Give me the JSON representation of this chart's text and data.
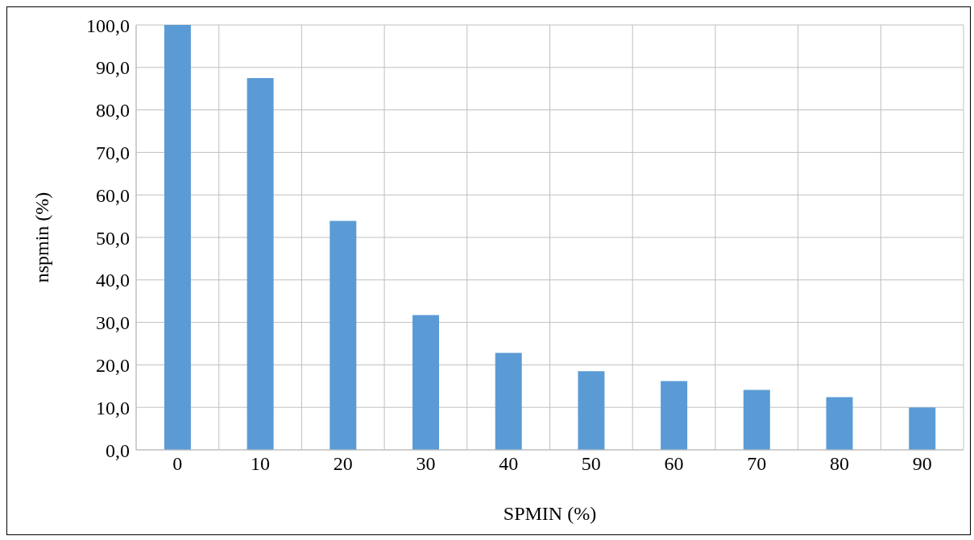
{
  "chart_data": {
    "type": "bar",
    "xlabel": "SPMIN (%)",
    "ylabel": "nspmin (%)",
    "categories": [
      "0",
      "10",
      "20",
      "30",
      "40",
      "50",
      "60",
      "70",
      "80",
      "90"
    ],
    "values": [
      100,
      87.5,
      53.9,
      31.7,
      22.8,
      18.5,
      16.2,
      14.1,
      12.4,
      10.0
    ],
    "color": "#5b9bd5",
    "ylim": [
      0,
      100
    ],
    "yticks": [
      {
        "value": 0,
        "label": "0,0"
      },
      {
        "value": 10,
        "label": "10,0"
      },
      {
        "value": 20,
        "label": "20,0"
      },
      {
        "value": 30,
        "label": "30,0"
      },
      {
        "value": 40,
        "label": "40,0"
      },
      {
        "value": 50,
        "label": "50,0"
      },
      {
        "value": 60,
        "label": "60,0"
      },
      {
        "value": 70,
        "label": "70,0"
      },
      {
        "value": 80,
        "label": "80,0"
      },
      {
        "value": 90,
        "label": "90,0"
      },
      {
        "value": 100,
        "label": "100,0"
      }
    ],
    "grid": true
  }
}
